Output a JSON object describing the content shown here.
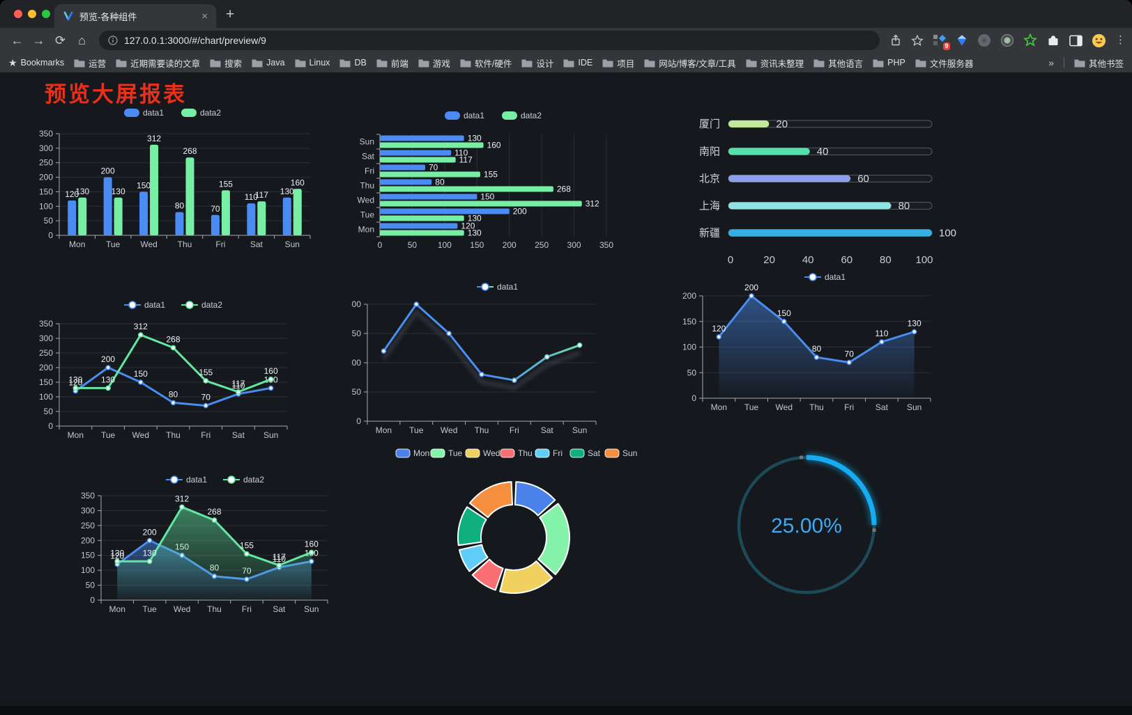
{
  "browser": {
    "traffic_light_colors": [
      "#ff5f57",
      "#febc2e",
      "#28c840"
    ],
    "tab": {
      "title": "预览-各种组件"
    },
    "address": {
      "url": "127.0.0.1:3000/#/chart/preview/9"
    },
    "extensions_badge": "9",
    "bookmarks_bar": {
      "star_label": "Bookmarks",
      "folders": [
        "运营",
        "近期需要读的文章",
        "搜索",
        "Java",
        "Linux",
        "DB",
        "前端",
        "游戏",
        "软件/硬件",
        "设计",
        "IDE",
        "项目",
        "网站/博客/文章/工具",
        "资讯未整理",
        "其他语言",
        "PHP",
        "文件服务器"
      ],
      "overflow_chevron": "»",
      "other_bookmarks": "其他书签"
    }
  },
  "page": {
    "heading": "预览大屏报表",
    "heading_color": "#e8301b",
    "background": "#15181c"
  },
  "chart_data": [
    {
      "id": "grouped-bar",
      "type": "bar",
      "categories": [
        "Mon",
        "Tue",
        "Wed",
        "Thu",
        "Fri",
        "Sat",
        "Sun"
      ],
      "series": [
        {
          "name": "data1",
          "color": "#4b8cf4",
          "values": [
            120,
            200,
            150,
            80,
            70,
            110,
            130
          ]
        },
        {
          "name": "data2",
          "color": "#76efa5",
          "values": [
            130,
            130,
            312,
            268,
            155,
            117,
            160
          ]
        }
      ],
      "ylim": [
        0,
        350
      ],
      "ytick_step": 50,
      "legend_position": "top",
      "grid": true,
      "value_labels": true
    },
    {
      "id": "weekly-horizontal-bar",
      "type": "bar",
      "orientation": "horizontal",
      "categories": [
        "Mon",
        "Tue",
        "Wed",
        "Thu",
        "Fri",
        "Sat",
        "Sun"
      ],
      "display_order_top_to_bottom": [
        "Sun",
        "Sat",
        "Fri",
        "Thu",
        "Wed",
        "Tue",
        "Mon"
      ],
      "series": [
        {
          "name": "data1",
          "color": "#4b8cf4",
          "values": [
            120,
            200,
            150,
            80,
            70,
            110,
            130
          ]
        },
        {
          "name": "data2",
          "color": "#76efa5",
          "values": [
            130,
            130,
            312,
            268,
            155,
            117,
            160
          ]
        }
      ],
      "xlim": [
        0,
        350
      ],
      "xtick_step": 50,
      "legend_position": "top",
      "grid": true,
      "value_labels": true
    },
    {
      "id": "city-progress",
      "type": "bar",
      "orientation": "horizontal",
      "items": [
        {
          "label": "厦门",
          "value": 20,
          "color": "#c2e89a"
        },
        {
          "label": "南阳",
          "value": 40,
          "color": "#55dfab"
        },
        {
          "label": "北京",
          "value": 60,
          "color": "#8f9ee8"
        },
        {
          "label": "上海",
          "value": 80,
          "color": "#8fe3e3"
        },
        {
          "label": "新疆",
          "value": 100,
          "color": "#35aee0"
        }
      ],
      "xlim": [
        0,
        100
      ],
      "xticks": [
        0,
        20,
        40,
        60,
        80,
        100
      ],
      "track_border_color": "#565b61"
    },
    {
      "id": "line-two-series",
      "type": "line",
      "categories": [
        "Mon",
        "Tue",
        "Wed",
        "Thu",
        "Fri",
        "Sat",
        "Sun"
      ],
      "series": [
        {
          "name": "data1",
          "color": "#4a8df0",
          "values": [
            120,
            200,
            150,
            80,
            70,
            110,
            130
          ]
        },
        {
          "name": "data2",
          "color": "#63e8a2",
          "values": [
            130,
            130,
            312,
            268,
            155,
            117,
            160
          ]
        }
      ],
      "ylim": [
        0,
        350
      ],
      "ytick_step": 50,
      "legend_position": "top",
      "grid": true,
      "value_labels": true
    },
    {
      "id": "line-gradient",
      "type": "line",
      "categories": [
        "Mon",
        "Tue",
        "Wed",
        "Thu",
        "Fri",
        "Sat",
        "Sun"
      ],
      "series": [
        {
          "name": "data1",
          "color_gradient": [
            "#4a90f2",
            "#6fe8a3"
          ],
          "values": [
            120,
            200,
            150,
            80,
            70,
            110,
            130
          ]
        }
      ],
      "ylim": [
        0,
        200
      ],
      "ytick_step": 50,
      "legend_position": "top",
      "grid": true,
      "value_labels": false,
      "line_shadow": true
    },
    {
      "id": "area-single",
      "type": "area",
      "categories": [
        "Mon",
        "Tue",
        "Wed",
        "Thu",
        "Fri",
        "Sat",
        "Sun"
      ],
      "series": [
        {
          "name": "data1",
          "color": "#4a8df0",
          "area": true,
          "values": [
            120,
            200,
            150,
            80,
            70,
            110,
            130
          ]
        }
      ],
      "ylim": [
        0,
        200
      ],
      "ytick_step": 50,
      "legend_position": "top",
      "grid": true,
      "value_labels": true
    },
    {
      "id": "line-area-two-series",
      "type": "area",
      "categories": [
        "Mon",
        "Tue",
        "Wed",
        "Thu",
        "Fri",
        "Sat",
        "Sun"
      ],
      "series": [
        {
          "name": "data1",
          "color": "#4a8df0",
          "area": true,
          "values": [
            120,
            200,
            150,
            80,
            70,
            110,
            130
          ]
        },
        {
          "name": "data2",
          "color": "#63e8a2",
          "area": true,
          "values": [
            130,
            130,
            312,
            268,
            155,
            117,
            160
          ]
        }
      ],
      "ylim": [
        0,
        350
      ],
      "ytick_step": 50,
      "legend_position": "top",
      "grid": true,
      "value_labels": true
    },
    {
      "id": "donut-weekdays",
      "type": "pie",
      "donut": true,
      "items": [
        {
          "label": "Mon",
          "value": 120,
          "color": "#4a82ea"
        },
        {
          "label": "Tue",
          "value": 200,
          "color": "#85f2a9"
        },
        {
          "label": "Wed",
          "value": 150,
          "color": "#f0d05e"
        },
        {
          "label": "Thu",
          "value": 80,
          "color": "#fa6f74"
        },
        {
          "label": "Fri",
          "value": 70,
          "color": "#5fcdf5"
        },
        {
          "label": "Sat",
          "value": 110,
          "color": "#0fb07e"
        },
        {
          "label": "Sun",
          "value": 130,
          "color": "#f68f40"
        }
      ],
      "legend_position": "top",
      "slice_border_color": "#ffffff"
    },
    {
      "id": "ring-progress",
      "type": "gauge",
      "value": 25,
      "value_label": "25.00%",
      "track_color": "#1d4a57",
      "progress_color": "#17acf2",
      "text_color": "#3fa9f5"
    }
  ]
}
